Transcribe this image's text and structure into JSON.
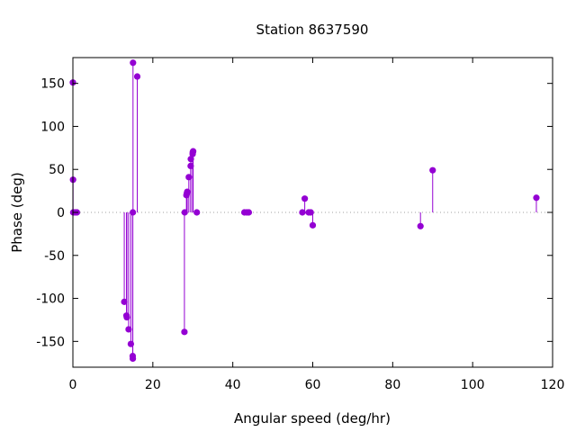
{
  "chart_data": {
    "type": "scatter",
    "style": "impulse-with-dots",
    "title": "Station 8637590",
    "xlabel": "Angular speed (deg/hr)",
    "ylabel": "Phase (deg)",
    "xlim": [
      0,
      120
    ],
    "ylim": [
      -180,
      180
    ],
    "xticks": [
      0,
      20,
      40,
      60,
      80,
      100,
      120
    ],
    "yticks": [
      -150,
      -100,
      -50,
      0,
      50,
      100,
      150
    ],
    "grid": false,
    "zero_line": "dotted",
    "series_color": "#9400d3",
    "points": [
      {
        "x": 0.0,
        "y": 151
      },
      {
        "x": 0.04,
        "y": 38
      },
      {
        "x": 0.08,
        "y": 0
      },
      {
        "x": 0.5,
        "y": 0
      },
      {
        "x": 1.0,
        "y": 0
      },
      {
        "x": 12.85,
        "y": -104
      },
      {
        "x": 13.4,
        "y": -120
      },
      {
        "x": 13.5,
        "y": -122
      },
      {
        "x": 13.94,
        "y": -136
      },
      {
        "x": 14.5,
        "y": -153
      },
      {
        "x": 14.96,
        "y": -167
      },
      {
        "x": 14.99,
        "y": -170
      },
      {
        "x": 15.0,
        "y": 0
      },
      {
        "x": 15.04,
        "y": 174
      },
      {
        "x": 16.1,
        "y": 158
      },
      {
        "x": 27.9,
        "y": -139
      },
      {
        "x": 27.97,
        "y": 0
      },
      {
        "x": 28.4,
        "y": 20
      },
      {
        "x": 28.5,
        "y": 22
      },
      {
        "x": 28.6,
        "y": 24
      },
      {
        "x": 29.0,
        "y": 41
      },
      {
        "x": 29.46,
        "y": 54
      },
      {
        "x": 29.5,
        "y": 62
      },
      {
        "x": 29.96,
        "y": 68
      },
      {
        "x": 30.0,
        "y": 70
      },
      {
        "x": 30.08,
        "y": 71
      },
      {
        "x": 31.0,
        "y": 0
      },
      {
        "x": 42.9,
        "y": 0
      },
      {
        "x": 43.5,
        "y": 0
      },
      {
        "x": 44.0,
        "y": 0
      },
      {
        "x": 57.4,
        "y": 0
      },
      {
        "x": 58.0,
        "y": 16
      },
      {
        "x": 58.98,
        "y": 0
      },
      {
        "x": 59.5,
        "y": 0
      },
      {
        "x": 60.0,
        "y": -15
      },
      {
        "x": 86.95,
        "y": -16
      },
      {
        "x": 90.0,
        "y": 49
      },
      {
        "x": 115.94,
        "y": 17
      }
    ]
  }
}
